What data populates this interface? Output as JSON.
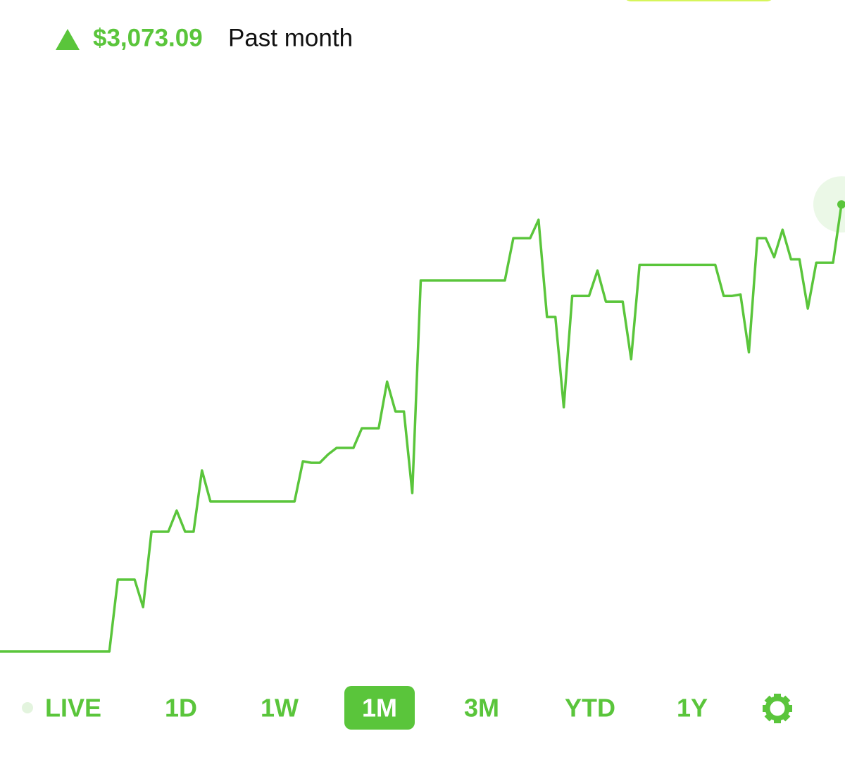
{
  "header": {
    "change": "$3,073.09",
    "period": "Past month"
  },
  "chart_data": {
    "type": "line",
    "color": "#5ac53b",
    "values": [
      0,
      0,
      0,
      0,
      0,
      0,
      0,
      0,
      0,
      0,
      0,
      0,
      0,
      0,
      494,
      494,
      494,
      305,
      823,
      823,
      823,
      968,
      823,
      823,
      1244,
      1031,
      1031,
      1031,
      1031,
      1031,
      1031,
      1031,
      1031,
      1031,
      1031,
      1031,
      1307,
      1297,
      1297,
      1355,
      1399,
      1399,
      1399,
      1534,
      1534,
      1534,
      1854,
      1650,
      1650,
      1089,
      2551,
      2551,
      2551,
      2551,
      2551,
      2551,
      2551,
      2551,
      2551,
      2551,
      2551,
      2841,
      2841,
      2841,
      2967,
      2299,
      2299,
      1679,
      2444,
      2444,
      2444,
      2618,
      2405,
      2405,
      2405,
      2009,
      2657,
      2657,
      2657,
      2657,
      2657,
      2657,
      2657,
      2657,
      2657,
      2657,
      2444,
      2444,
      2454,
      2057,
      2841,
      2841,
      2710,
      2899,
      2696,
      2696,
      2357,
      2672,
      2672,
      2672,
      3073.09
    ],
    "ylim": [
      0,
      3200
    ]
  },
  "tabs": [
    "LIVE",
    "1D",
    "1W",
    "1M",
    "3M",
    "YTD",
    "1Y"
  ],
  "selected_tab": 3
}
